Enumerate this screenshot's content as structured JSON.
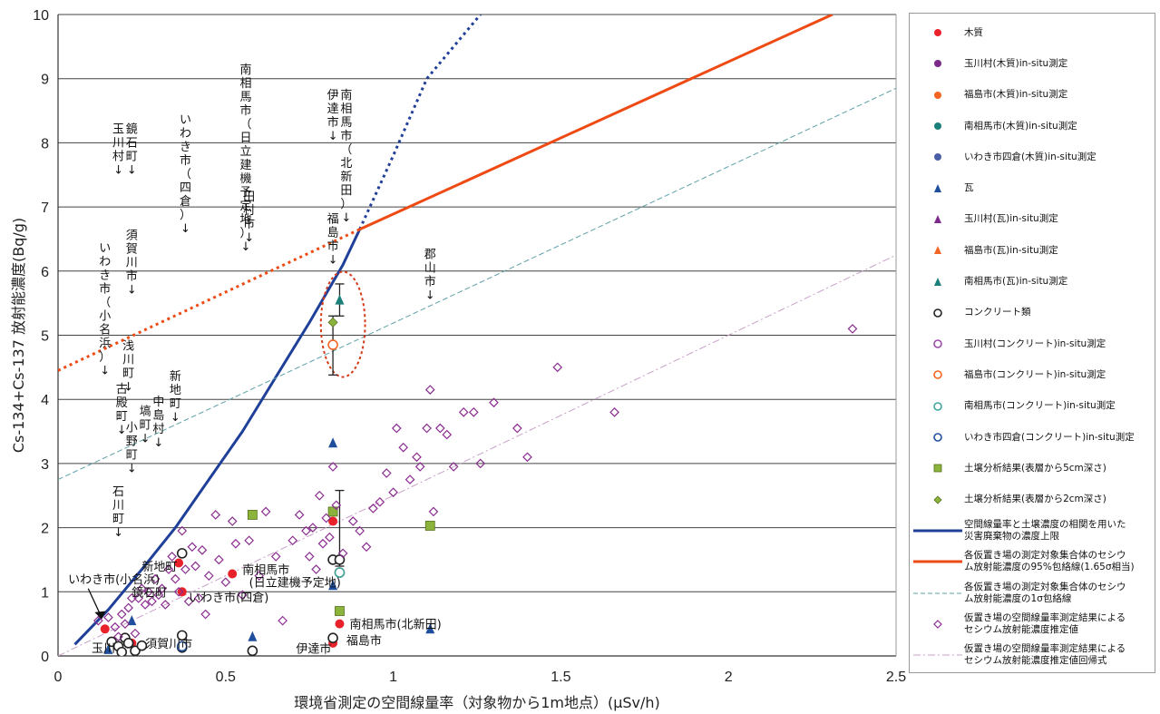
{
  "chart_data": {
    "type": "scatter",
    "title": "",
    "xlabel": "環境省測定の空間線量率（対象物から1m地点）(μSv/h)",
    "ylabel": "Cs-134+Cs-137 放射能濃度(Bq/g)",
    "xlim": [
      0,
      2.5
    ],
    "ylim": [
      0,
      10
    ],
    "xticks": [
      "0",
      "0.5",
      "1",
      "1.5",
      "2",
      "2.5"
    ],
    "yticks": [
      "0",
      "1",
      "2",
      "3",
      "4",
      "5",
      "6",
      "7",
      "8",
      "9",
      "10"
    ],
    "grid": "horizontal",
    "legend_position": "right",
    "legend": [
      {
        "label": "木質",
        "symbol": "circle",
        "color": "#e8212a"
      },
      {
        "label": "玉川村(木質)in-situ測定",
        "symbol": "circle",
        "color": "#7b2a8c"
      },
      {
        "label": "福島市(木質)in-situ測定",
        "symbol": "circle",
        "color": "#f26522"
      },
      {
        "label": "南相馬市(木質)in-situ測定",
        "symbol": "circle",
        "color": "#1b7f7a"
      },
      {
        "label": "いわき市四倉(木質)in-situ測定",
        "symbol": "circle",
        "color": "#4a5ea8"
      },
      {
        "label": "瓦",
        "symbol": "triangle",
        "color": "#1f4e9c"
      },
      {
        "label": "玉川村(瓦)in-situ測定",
        "symbol": "triangle",
        "color": "#7b2a8c"
      },
      {
        "label": "福島市(瓦)in-situ測定",
        "symbol": "triangle",
        "color": "#f26522"
      },
      {
        "label": "南相馬市(瓦)in-situ測定",
        "symbol": "triangle",
        "color": "#1b7f7a"
      },
      {
        "label": "コンクリート類",
        "symbol": "open-circle",
        "color": "#222222"
      },
      {
        "label": "玉川村(コンクリート)in-situ測定",
        "symbol": "open-circle",
        "color": "#9b4aa8"
      },
      {
        "label": "福島市(コンクリート)in-situ測定",
        "symbol": "open-circle",
        "color": "#f26522"
      },
      {
        "label": "南相馬市(コンクリート)in-situ測定",
        "symbol": "open-circle",
        "color": "#3fa7a0"
      },
      {
        "label": "いわき市四倉(コンクリート)in-situ測定",
        "symbol": "open-circle",
        "color": "#1f4e9c"
      },
      {
        "label": "土壌分析結果(表層から5cm深さ)",
        "symbol": "square",
        "color": "#8cb43c"
      },
      {
        "label": "土壌分析結果(表層から2cm深さ)",
        "symbol": "diamond",
        "color": "#8cb43c"
      },
      {
        "label": "空間線量率と土壌濃度の相関を用いた\n災害廃棄物の濃度上限",
        "symbol": "line",
        "color": "#1f3f99"
      },
      {
        "label": "各仮置き場の測定対象集合体のセシウ\nム放射能濃度の95%包絡線(1.65σ相当)",
        "symbol": "line",
        "color": "#ee4a14"
      },
      {
        "label": "各仮置き場の測定対象集合体のセシウ\nム放射能濃度の1σ包絡線",
        "symbol": "dashed-line",
        "color": "#5ea0a8"
      },
      {
        "label": "仮置き場の空間線量率測定結果による\nセシウム放射能濃度推定値",
        "symbol": "open-diamond",
        "color": "#8a2e8f"
      },
      {
        "label": "仮置き場の空間線量率測定結果による\nセシウム放射能濃度推定値回帰式",
        "symbol": "dashdot-line",
        "color": "#c8a0c8"
      }
    ],
    "series": [
      {
        "name": "木質",
        "points": [
          [
            0.14,
            0.42
          ],
          [
            0.22,
            0.2
          ],
          [
            0.36,
            1.45
          ],
          [
            0.37,
            1.0
          ],
          [
            0.52,
            1.28
          ],
          [
            0.82,
            2.1
          ],
          [
            0.84,
            0.5
          ],
          [
            0.82,
            0.2
          ]
        ]
      },
      {
        "name": "瓦",
        "points": [
          [
            0.15,
            0.1
          ],
          [
            0.22,
            0.55
          ],
          [
            0.58,
            0.3
          ],
          [
            0.82,
            3.32
          ],
          [
            0.82,
            1.1
          ],
          [
            1.11,
            0.42
          ]
        ]
      },
      {
        "name": "南相馬市(瓦)in-situ測定",
        "points": [
          [
            0.84,
            5.55
          ]
        ]
      },
      {
        "name": "コンクリート類",
        "points": [
          [
            0.16,
            0.22
          ],
          [
            0.18,
            0.15
          ],
          [
            0.19,
            0.06
          ],
          [
            0.2,
            0.28
          ],
          [
            0.21,
            0.2
          ],
          [
            0.23,
            0.08
          ],
          [
            0.25,
            0.16
          ],
          [
            0.37,
            0.32
          ],
          [
            0.37,
            1.6
          ],
          [
            0.37,
            0.13
          ],
          [
            0.58,
            0.08
          ],
          [
            0.82,
            1.5
          ],
          [
            0.82,
            0.28
          ],
          [
            0.84,
            1.5
          ]
        ]
      },
      {
        "name": "福島市(コンクリート)in-situ測定",
        "points": [
          [
            0.82,
            4.85
          ],
          [
            0.84,
            1.3
          ]
        ]
      },
      {
        "name": "南相馬市(コンクリート)in-situ測定",
        "points": [
          [
            0.84,
            1.3
          ]
        ]
      },
      {
        "name": "いわき市四倉(コンクリート)in-situ測定",
        "points": [
          [
            0.37,
            0.15
          ]
        ]
      },
      {
        "name": "土壌分析結果(表層から5cm深さ)",
        "points": [
          [
            0.58,
            2.2
          ],
          [
            0.82,
            2.25
          ],
          [
            0.84,
            0.7
          ],
          [
            1.11,
            2.03
          ]
        ]
      },
      {
        "name": "土壌分析結果(表層から2cm深さ)",
        "points": [
          [
            0.82,
            5.2
          ]
        ]
      },
      {
        "name": "仮置き場の空間線量率測定結果によるセシウム放射能濃度推定値",
        "points": [
          [
            0.12,
            0.55
          ],
          [
            0.15,
            0.6
          ],
          [
            0.17,
            0.45
          ],
          [
            0.18,
            0.3
          ],
          [
            0.19,
            0.65
          ],
          [
            0.2,
            0.5
          ],
          [
            0.21,
            0.75
          ],
          [
            0.22,
            0.9
          ],
          [
            0.23,
            0.35
          ],
          [
            0.24,
            0.9
          ],
          [
            0.25,
            1.05
          ],
          [
            0.26,
            0.8
          ],
          [
            0.27,
            1.0
          ],
          [
            0.28,
            0.85
          ],
          [
            0.29,
            1.2
          ],
          [
            0.3,
            0.95
          ],
          [
            0.31,
            1.05
          ],
          [
            0.32,
            0.8
          ],
          [
            0.33,
            1.35
          ],
          [
            0.34,
            1.55
          ],
          [
            0.35,
            1.2
          ],
          [
            0.36,
            1.0
          ],
          [
            0.37,
            1.95
          ],
          [
            0.38,
            1.35
          ],
          [
            0.39,
            0.85
          ],
          [
            0.4,
            1.7
          ],
          [
            0.41,
            1.4
          ],
          [
            0.42,
            0.9
          ],
          [
            0.43,
            1.65
          ],
          [
            0.44,
            0.65
          ],
          [
            0.45,
            1.25
          ],
          [
            0.47,
            2.2
          ],
          [
            0.48,
            1.5
          ],
          [
            0.5,
            1.15
          ],
          [
            0.52,
            2.1
          ],
          [
            0.53,
            1.75
          ],
          [
            0.55,
            0.95
          ],
          [
            0.57,
            1.8
          ],
          [
            0.6,
            1.25
          ],
          [
            0.62,
            2.25
          ],
          [
            0.65,
            1.55
          ],
          [
            0.67,
            0.55
          ],
          [
            0.7,
            1.8
          ],
          [
            0.72,
            2.2
          ],
          [
            0.74,
            1.95
          ],
          [
            0.75,
            1.55
          ],
          [
            0.76,
            2.0
          ],
          [
            0.77,
            1.35
          ],
          [
            0.78,
            2.5
          ],
          [
            0.79,
            1.75
          ],
          [
            0.8,
            2.15
          ],
          [
            0.81,
            1.85
          ],
          [
            0.82,
            2.95
          ],
          [
            0.83,
            2.35
          ],
          [
            0.85,
            1.6
          ],
          [
            0.88,
            2.1
          ],
          [
            0.9,
            1.95
          ],
          [
            0.92,
            1.7
          ],
          [
            0.94,
            2.3
          ],
          [
            0.96,
            2.4
          ],
          [
            0.98,
            2.85
          ],
          [
            1.0,
            2.55
          ],
          [
            1.01,
            3.55
          ],
          [
            1.03,
            3.25
          ],
          [
            1.05,
            2.75
          ],
          [
            1.07,
            3.1
          ],
          [
            1.08,
            2.95
          ],
          [
            1.1,
            3.55
          ],
          [
            1.12,
            2.25
          ],
          [
            1.14,
            3.55
          ],
          [
            1.16,
            3.45
          ],
          [
            1.18,
            2.95
          ],
          [
            1.21,
            3.8
          ],
          [
            1.24,
            3.8
          ],
          [
            1.26,
            3.0
          ],
          [
            1.3,
            3.95
          ],
          [
            1.37,
            3.55
          ],
          [
            1.4,
            3.1
          ],
          [
            1.49,
            4.5
          ],
          [
            1.66,
            3.8
          ],
          [
            1.11,
            4.15
          ],
          [
            2.37,
            5.1
          ]
        ]
      }
    ],
    "lines": [
      {
        "name": "空間線量率と土壌濃度の相関を用いた災害廃棄物の濃度上限",
        "points": [
          [
            0.05,
            0.18
          ],
          [
            0.15,
            0.72
          ],
          [
            0.25,
            1.35
          ],
          [
            0.35,
            2.0
          ],
          [
            0.45,
            2.75
          ],
          [
            0.55,
            3.5
          ],
          [
            0.65,
            4.35
          ],
          [
            0.75,
            5.2
          ],
          [
            0.85,
            6.1
          ],
          [
            0.9,
            6.65
          ]
        ],
        "extension_dotted": [
          [
            0.9,
            6.65
          ],
          [
            1.0,
            7.8
          ],
          [
            1.1,
            9.0
          ],
          [
            1.26,
            10.0
          ]
        ]
      },
      {
        "name": "各仮置き場の測定対象集合体のセシウム放射能濃度の95%包絡線(1.65σ相当)",
        "points": [
          [
            0.9,
            6.65
          ],
          [
            2.31,
            10.0
          ]
        ],
        "extension_dotted": [
          [
            0.0,
            4.45
          ],
          [
            0.9,
            6.65
          ]
        ]
      },
      {
        "name": "各仮置き場の測定対象集合体のセシウム放射能濃度の1σ包絡線",
        "points": [
          [
            0.0,
            2.75
          ],
          [
            2.5,
            8.85
          ]
        ]
      },
      {
        "name": "仮置き場の空間線量率測定結果によるセシウム放射能濃度推定値回帰式",
        "points": [
          [
            0.0,
            0.0
          ],
          [
            2.5,
            6.25
          ]
        ]
      }
    ],
    "error_bars": [
      {
        "x": 0.82,
        "y": 4.85,
        "low": 4.38,
        "high": 5.3
      },
      {
        "x": 0.84,
        "y": 5.55,
        "low": 5.3,
        "high": 5.8
      },
      {
        "x": 0.84,
        "y": 2.1,
        "low": 1.4,
        "high": 2.58
      }
    ],
    "highlight_ellipse": {
      "cx": 0.85,
      "cy": 5.17,
      "rx": 0.066,
      "ry": 0.82
    },
    "vertical_labels": [
      {
        "text": "玉川村↓",
        "x": 0.18,
        "top": 8.35
      },
      {
        "text": "鏡石町↓",
        "x": 0.22,
        "top": 8.35
      },
      {
        "text": "須賀川市↓",
        "x": 0.22,
        "top": 6.7
      },
      {
        "text": "いわき市（小名浜）↓",
        "x": 0.14,
        "top": 6.5
      },
      {
        "text": "浅川町↓",
        "x": 0.21,
        "top": 4.97
      },
      {
        "text": "古殿町↓",
        "x": 0.19,
        "top": 4.3
      },
      {
        "text": "小野町↓",
        "x": 0.22,
        "top": 3.7
      },
      {
        "text": "石川町↓",
        "x": 0.18,
        "top": 2.7
      },
      {
        "text": "塙町↓",
        "x": 0.26,
        "top": 3.95
      },
      {
        "text": "中島村↓",
        "x": 0.3,
        "top": 4.1
      },
      {
        "text": "新地町↓",
        "x": 0.35,
        "top": 4.5
      },
      {
        "text": "いわき市（四倉）↓",
        "x": 0.38,
        "top": 8.5
      },
      {
        "text": "南相馬市（日立建機予定地）↓",
        "x": 0.56,
        "top": 9.28
      },
      {
        "text": "田村市↓",
        "x": 0.57,
        "top": 7.3
      },
      {
        "text": "伊達市↓",
        "x": 0.82,
        "top": 8.88
      },
      {
        "text": "南相馬市（北新田）↓",
        "x": 0.86,
        "top": 8.88
      },
      {
        "text": "福島市↓",
        "x": 0.82,
        "top": 6.95
      },
      {
        "text": "郡山市↓",
        "x": 1.11,
        "top": 6.4
      }
    ],
    "point_labels": [
      {
        "text": "いわき市(小名浜)",
        "x": 0.03,
        "y": 1.2
      },
      {
        "text": "新地町",
        "x": 0.25,
        "y": 1.4
      },
      {
        "text": "鏡石町",
        "x": 0.22,
        "y": 1.0
      },
      {
        "text": "南相馬市",
        "x": 0.55,
        "y": 1.35
      },
      {
        "text": "(日立建機予定地)",
        "x": 0.57,
        "y": 1.15
      },
      {
        "text": "いわき市(四倉)",
        "x": 0.39,
        "y": 0.92
      },
      {
        "text": "南相馬市(北新田)",
        "x": 0.87,
        "y": 0.5
      },
      {
        "text": "福島市",
        "x": 0.86,
        "y": 0.25
      },
      {
        "text": "須賀川市",
        "x": 0.26,
        "y": 0.2
      },
      {
        "text": "伊達市",
        "x": 0.71,
        "y": 0.12
      },
      {
        "text": "玉川",
        "x": 0.1,
        "y": 0.13
      }
    ]
  }
}
